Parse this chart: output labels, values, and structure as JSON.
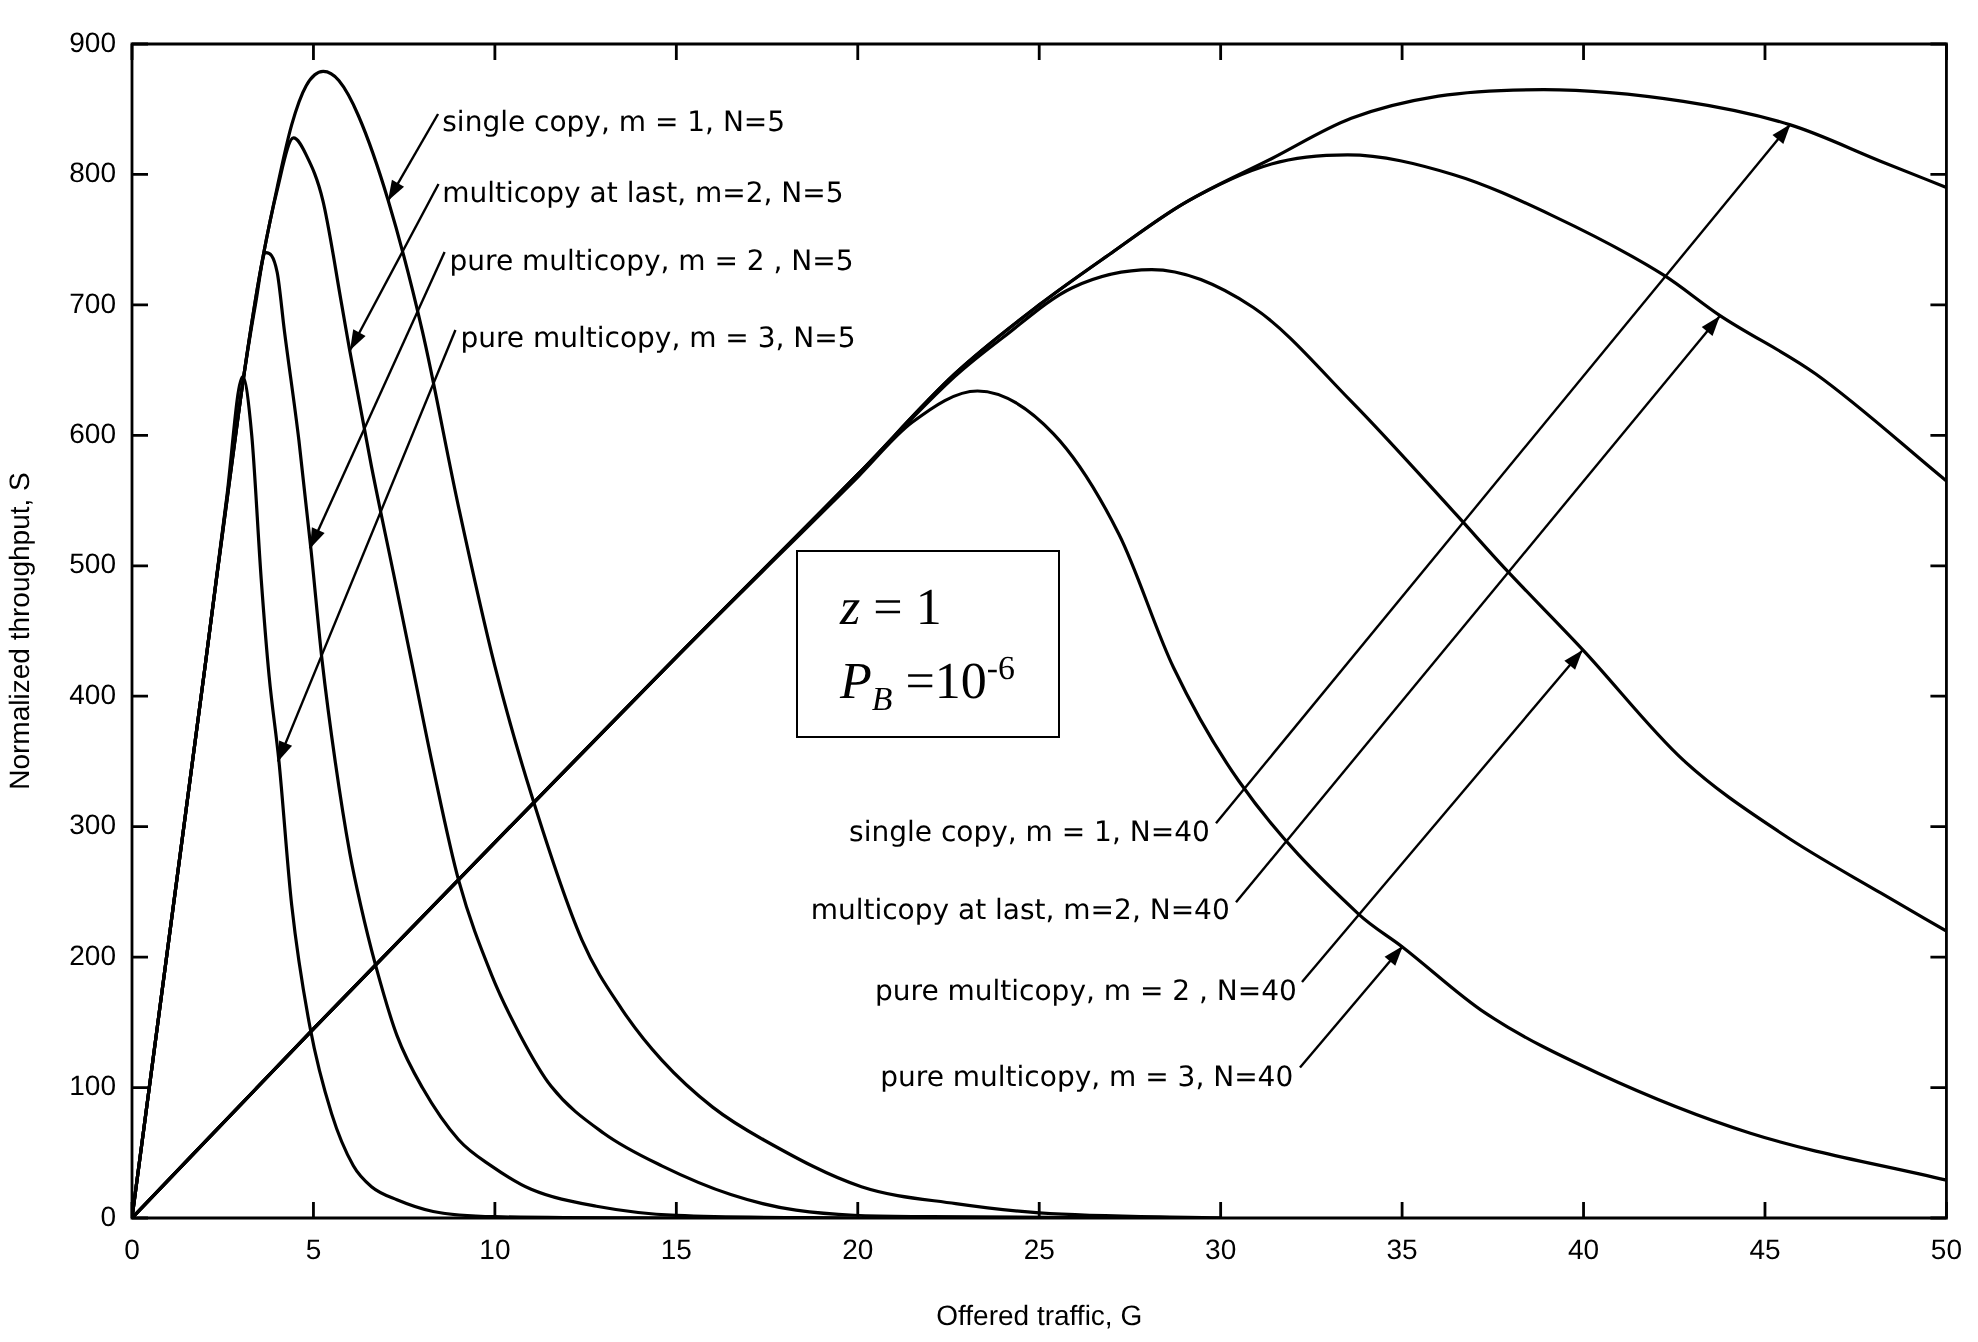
{
  "chart_data": {
    "type": "line",
    "xlabel": "Offered traffic, G",
    "ylabel": "Normalized throughput, S",
    "xlim": [
      0,
      50
    ],
    "xticks": [
      0,
      5,
      10,
      15,
      20,
      25,
      30,
      35,
      40,
      45,
      50
    ],
    "ylim": [
      0,
      900
    ],
    "yticks": [
      0,
      100,
      200,
      300,
      400,
      500,
      600,
      700,
      800,
      900
    ],
    "grid": false,
    "legend": false,
    "marker": "none",
    "line_style": "solid",
    "series": [
      {
        "color": "#000000",
        "x": [
          0,
          1,
          2,
          3,
          3.5,
          4,
          4.4,
          4.8,
          5.27,
          5.7,
          6.24,
          7.06,
          8,
          9,
          10,
          11,
          12.4,
          13.5,
          14.6,
          16,
          17.4,
          20.1,
          22.7,
          25,
          30
        ],
        "values": [
          0,
          210,
          420,
          630,
          720,
          790,
          838,
          868,
          879,
          872,
          845,
          780,
          680,
          545,
          423,
          325,
          213,
          160,
          121,
          85,
          60,
          24,
          11,
          4,
          0
        ]
      },
      {
        "color": "#000000",
        "x": [
          0,
          1,
          2,
          3,
          3.5,
          4,
          4.45,
          4.8,
          5.26,
          5.78,
          6,
          6.6,
          7.2,
          7.7,
          8.3,
          9,
          9.9,
          10.7,
          11.55,
          13,
          14.6,
          16.5,
          18.3,
          22,
          30
        ],
        "values": [
          0,
          210,
          420,
          630,
          720,
          788,
          828,
          815,
          780,
          700,
          665,
          576,
          495,
          427,
          345,
          259,
          187,
          140,
          101,
          65,
          40,
          18,
          6,
          1,
          0
        ]
      },
      {
        "color": "#000000",
        "x": [
          0,
          1,
          2,
          3,
          3.4,
          3.69,
          4,
          4.2,
          4.6,
          4.93,
          5.24,
          5.6,
          6,
          6.3,
          6.7,
          7.3,
          8,
          9,
          9.9,
          11,
          12.8,
          15,
          20
        ],
        "values": [
          0,
          210,
          420,
          630,
          700,
          740,
          725,
          680,
          596,
          513,
          427,
          350,
          280,
          240,
          195,
          140,
          100,
          60,
          40,
          22,
          9,
          2,
          0
        ]
      },
      {
        "color": "#000000",
        "x": [
          0,
          1,
          2,
          2.6,
          3.05,
          3.3,
          3.56,
          3.78,
          4.05,
          4.4,
          4.9,
          5.5,
          6.1,
          6.6,
          7.3,
          8.3,
          10,
          15
        ],
        "values": [
          0,
          210,
          420,
          550,
          645,
          600,
          490,
          415,
          350,
          240,
          147,
          80,
          40,
          24,
          14,
          5,
          1,
          0
        ]
      },
      {
        "color": "#000000",
        "x": [
          0,
          5,
          10,
          15,
          20,
          22.67,
          25,
          27,
          29,
          31.4,
          33.6,
          36,
          38.9,
          42.75,
          45.7,
          48.2,
          50
        ],
        "values": [
          0,
          145,
          288,
          430,
          570,
          647,
          700,
          740,
          778,
          812,
          843,
          860,
          865,
          856,
          838,
          810,
          790
        ]
      },
      {
        "color": "#000000",
        "x": [
          0,
          5,
          10,
          15,
          20,
          22.67,
          25,
          27,
          29,
          31.4,
          33.5,
          36.4,
          39.1,
          42.2,
          43.75,
          46.4,
          50
        ],
        "values": [
          0,
          145,
          288,
          430,
          570,
          647,
          700,
          740,
          778,
          808,
          815,
          800,
          769,
          723,
          692,
          647,
          565
        ]
      },
      {
        "color": "#000000",
        "x": [
          0,
          5,
          10,
          15,
          20,
          22.67,
          24,
          25.9,
          28.1,
          30.9,
          33.6,
          36.5,
          37.8,
          40,
          42.75,
          45.5,
          48.2,
          50
        ],
        "values": [
          0,
          145,
          288,
          430,
          570,
          645,
          675,
          713,
          727,
          698,
          626,
          539,
          499,
          435,
          351,
          294,
          249,
          220
        ]
      },
      {
        "color": "#000000",
        "x": [
          0,
          5,
          10,
          15,
          20,
          21.5,
          23.3,
          25.4,
          27.2,
          28.7,
          30.5,
          33.8,
          35,
          37.3,
          40.4,
          44.6,
          50
        ],
        "values": [
          0,
          145,
          288,
          430,
          568,
          610,
          634,
          601,
          524,
          422,
          335,
          233,
          208,
          157,
          111,
          65,
          29
        ]
      }
    ],
    "annotations": [
      {
        "text": "single copy, m = 1, N=5",
        "x": 7.06,
        "y": 780
      },
      {
        "text": "multicopy at last, m=2, N=5",
        "x": 6,
        "y": 665
      },
      {
        "text": "pure multicopy, m = 2 , N=5",
        "x": 4.93,
        "y": 513
      },
      {
        "text": "pure multicopy, m = 3, N=5",
        "x": 4.05,
        "y": 350
      },
      "z = 1",
      "P$_{B}$ =10$^{-6}$",
      {
        "text": "single copy, m = 1, N=40",
        "x": 45.7,
        "y": 838
      },
      {
        "text": "multicopy at last, m=2, N=40",
        "x": 43.75,
        "y": 692
      },
      {
        "text": "pure multicopy, m = 2 , N=40",
        "x": 40,
        "y": 435
      },
      {
        "text": "pure multicopy, m = 3, N=40",
        "x": 35,
        "y": 208
      }
    ]
  }
}
